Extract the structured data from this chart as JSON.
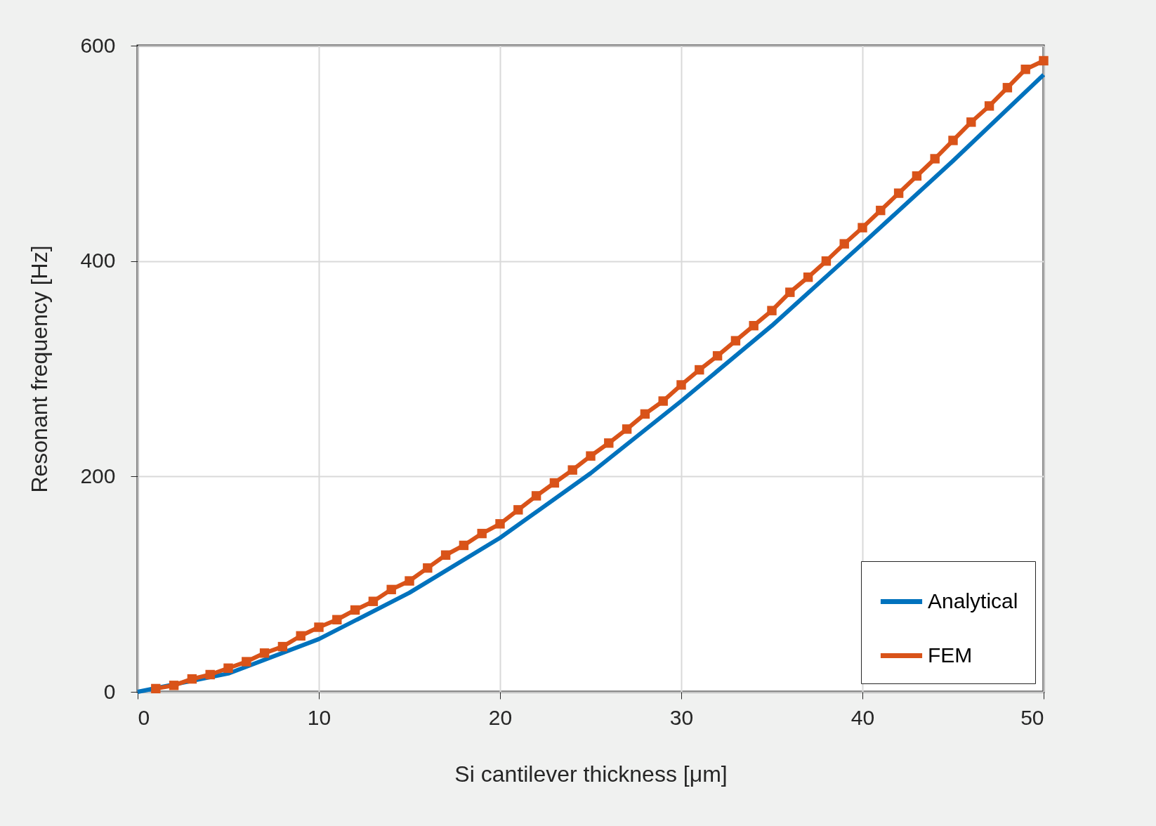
{
  "chart_data": {
    "type": "line",
    "xlabel": "Si cantilever thickness [μm]",
    "ylabel": "Resonant frequency [Hz]",
    "xlim": [
      0,
      50
    ],
    "ylim": [
      0,
      600
    ],
    "xticks": [
      0,
      10,
      20,
      30,
      40,
      50
    ],
    "yticks": [
      0,
      200,
      400,
      600
    ],
    "grid": true,
    "legend": "bottom right",
    "series": [
      {
        "name": "Analytical",
        "color": "#0072bd",
        "x": [
          0,
          5,
          10,
          15,
          20,
          25,
          30,
          35,
          40,
          45,
          50
        ],
        "values": [
          0,
          17,
          49,
          92,
          143,
          203,
          270,
          340,
          416,
          493,
          573
        ]
      },
      {
        "name": "FEM",
        "color": "#d95319",
        "marker": "square",
        "x": [
          1,
          2,
          3,
          4,
          5,
          6,
          7,
          8,
          9,
          10,
          11,
          12,
          13,
          14,
          15,
          16,
          17,
          18,
          19,
          20,
          21,
          22,
          23,
          24,
          25,
          26,
          27,
          28,
          29,
          30,
          31,
          32,
          33,
          34,
          35,
          36,
          37,
          38,
          39,
          40,
          41,
          42,
          43,
          44,
          45,
          46,
          47,
          48,
          49,
          50
        ],
        "values": [
          3,
          6,
          12,
          16,
          22,
          28,
          36,
          42,
          52,
          60,
          67,
          76,
          84,
          95,
          103,
          115,
          127,
          136,
          147,
          156,
          169,
          182,
          194,
          206,
          219,
          231,
          244,
          258,
          270,
          285,
          299,
          312,
          326,
          340,
          354,
          371,
          385,
          400,
          416,
          431,
          447,
          463,
          479,
          495,
          512,
          529,
          544,
          561,
          578,
          586
        ]
      }
    ]
  }
}
